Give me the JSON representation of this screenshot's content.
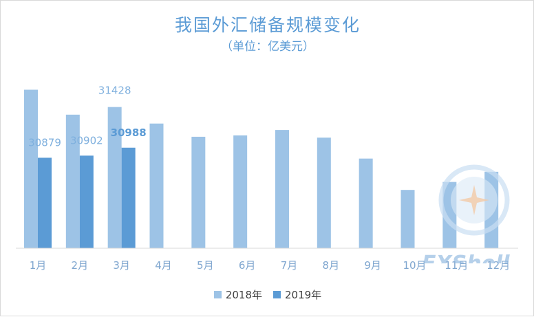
{
  "chart_data": {
    "type": "bar",
    "title": "我国外汇储备规模变化",
    "subtitle": "（单位：亿美元）",
    "categories": [
      "1月",
      "2月",
      "3月",
      "4月",
      "5月",
      "6月",
      "7月",
      "8月",
      "9月",
      "10月",
      "11月",
      "12月"
    ],
    "series": [
      {
        "name": "2018年",
        "color": "#9dc3e6",
        "values": [
          31615,
          31345,
          31428,
          31249,
          31106,
          31121,
          31179,
          31097,
          30870,
          30531,
          30617,
          30727
        ]
      },
      {
        "name": "2019年",
        "color": "#5b9bd5",
        "values": [
          30879,
          30902,
          30988,
          null,
          null,
          null,
          null,
          null,
          null,
          null,
          null,
          null
        ]
      }
    ],
    "data_labels": [
      {
        "series": 0,
        "index": 2,
        "text": "31428"
      },
      {
        "series": 1,
        "index": 0,
        "text": "30879"
      },
      {
        "series": 1,
        "index": 1,
        "text": "30902"
      },
      {
        "series": 1,
        "index": 2,
        "text": "30988"
      }
    ],
    "ylim": [
      29900,
      31760
    ],
    "grid": false,
    "legend_position": "bottom"
  },
  "watermark": {
    "text": "FXShell",
    "color": "#8fb7e0"
  }
}
